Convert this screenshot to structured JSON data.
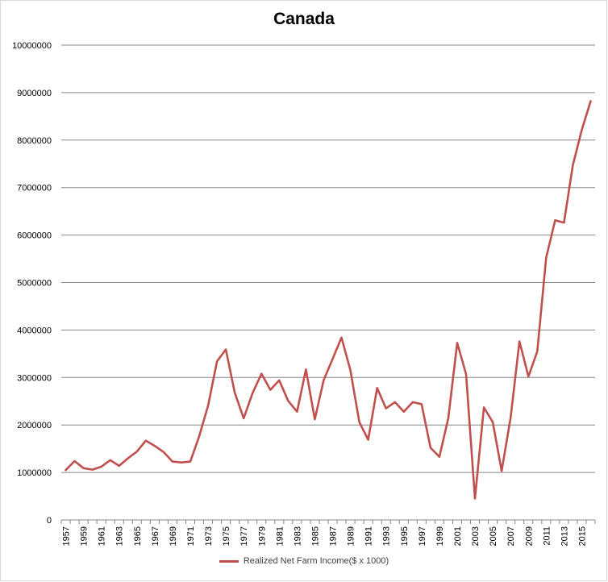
{
  "chart_data": {
    "type": "line",
    "title": "Canada",
    "xlabel": "",
    "ylabel": "",
    "ylim": [
      0,
      10000000
    ],
    "y_ticks": [
      "0",
      "1000000",
      "2000000",
      "3000000",
      "4000000",
      "5000000",
      "6000000",
      "7000000",
      "8000000",
      "9000000",
      "10000000"
    ],
    "x_tick_labels": [
      "1957",
      "1959",
      "1961",
      "1963",
      "1965",
      "1967",
      "1969",
      "1971",
      "1973",
      "1975",
      "1977",
      "1979",
      "1981",
      "1983",
      "1985",
      "1987",
      "1989",
      "1991",
      "1993",
      "1995",
      "1997",
      "1999",
      "2001",
      "2003",
      "2005",
      "2007",
      "2009",
      "2011",
      "2013",
      "2015"
    ],
    "x": [
      1957,
      1958,
      1959,
      1960,
      1961,
      1962,
      1963,
      1964,
      1965,
      1966,
      1967,
      1968,
      1969,
      1970,
      1971,
      1972,
      1973,
      1974,
      1975,
      1976,
      1977,
      1978,
      1979,
      1980,
      1981,
      1982,
      1983,
      1984,
      1985,
      1986,
      1987,
      1988,
      1989,
      1990,
      1991,
      1992,
      1993,
      1994,
      1995,
      1996,
      1997,
      1998,
      1999,
      2000,
      2001,
      2002,
      2003,
      2004,
      2005,
      2006,
      2007,
      2008,
      2009,
      2010,
      2011,
      2012,
      2013,
      2014,
      2015,
      2016
    ],
    "series": [
      {
        "name": "Realized Net Farm Income($ x 1000)",
        "color": "#c0504d",
        "values": [
          1050000,
          1240000,
          1090000,
          1060000,
          1120000,
          1260000,
          1140000,
          1300000,
          1440000,
          1670000,
          1560000,
          1430000,
          1230000,
          1210000,
          1230000,
          1760000,
          2410000,
          3340000,
          3590000,
          2680000,
          2140000,
          2670000,
          3080000,
          2740000,
          2940000,
          2510000,
          2280000,
          3170000,
          2120000,
          2950000,
          3390000,
          3840000,
          3150000,
          2060000,
          1690000,
          2780000,
          2350000,
          2480000,
          2280000,
          2480000,
          2440000,
          1520000,
          1330000,
          2150000,
          3730000,
          3070000,
          450000,
          2370000,
          2060000,
          1030000,
          2150000,
          3760000,
          3020000,
          3550000,
          5520000,
          6310000,
          6260000,
          7470000,
          8210000,
          8820000
        ]
      }
    ],
    "grid": true,
    "legend_position": "bottom"
  }
}
